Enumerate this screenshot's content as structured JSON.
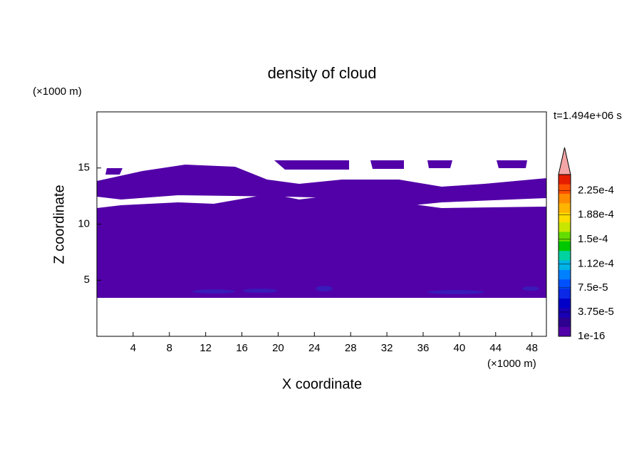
{
  "chart_data": {
    "type": "contour",
    "title": "density of cloud",
    "x_label": "X coordinate",
    "y_label": "Z coordinate",
    "x_unit": "(×1000 m)",
    "y_unit": "(×1000 m)",
    "time_label": "t=1.494e+06 s",
    "xlim": [
      0,
      49.6
    ],
    "ylim": [
      0,
      20
    ],
    "xticks": [
      4,
      8,
      12,
      16,
      20,
      24,
      28,
      32,
      36,
      40,
      44,
      48
    ],
    "yticks": [
      5,
      10,
      15
    ],
    "fill_color": "#5200a8",
    "colorbar": {
      "lim": [
        1e-16,
        0.00025
      ],
      "ticks": [
        {
          "value": 1e-16,
          "label": "1e-16"
        },
        {
          "value": 3.75e-05,
          "label": "3.75e-5"
        },
        {
          "value": 7.5e-05,
          "label": "7.5e-5"
        },
        {
          "value": 0.000112,
          "label": "1.12e-4"
        },
        {
          "value": 0.00015,
          "label": "1.5e-4"
        },
        {
          "value": 0.000188,
          "label": "1.88e-4"
        },
        {
          "value": 0.000225,
          "label": "2.25e-4"
        }
      ],
      "colors": [
        "#5200a8",
        "#2d0090",
        "#1a00b4",
        "#0000c8",
        "#0a28e6",
        "#0050ff",
        "#0080ff",
        "#00b4e6",
        "#00d2a0",
        "#00c800",
        "#64dc00",
        "#c8e600",
        "#ffdc00",
        "#ffb400",
        "#ff8c00",
        "#ff5000",
        "#e61e00"
      ],
      "extend_color": "#f4a6a6"
    }
  }
}
